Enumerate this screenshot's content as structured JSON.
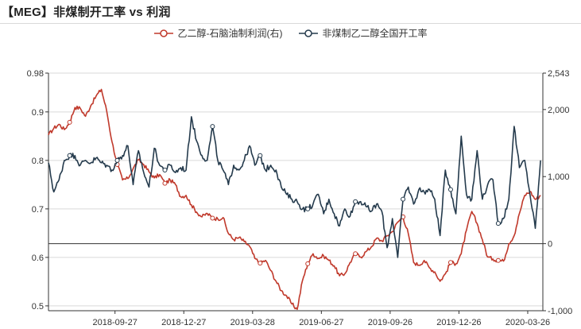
{
  "title": "【MEG】非煤制开工率 vs 利润",
  "colors": {
    "profit": "#c0392b",
    "rate": "#243a4c",
    "grid": "#d9d9d9",
    "axis": "#333333"
  },
  "chart_data": {
    "type": "line",
    "title": "【MEG】非煤制开工率 vs 利润",
    "x_tick_labels": [
      "2018-09-27",
      "2018-12-27",
      "2019-03-28",
      "2019-06-27",
      "2019-09-26",
      "2019-12-26",
      "2020-03-26"
    ],
    "x_range": [
      "2018-07-01",
      "2020-04-15"
    ],
    "y_left": {
      "ylim": [
        0.49,
        0.98
      ],
      "ticks": [
        0.5,
        0.6,
        0.7,
        0.8,
        0.9,
        0.98
      ],
      "tick_labels": [
        "0.5",
        "0.6",
        "0.7",
        "0.8",
        "0.9",
        "0.98"
      ]
    },
    "y_right": {
      "ylim": [
        -1000,
        2543
      ],
      "ticks": [
        -1000,
        0,
        1000,
        2000,
        2543
      ],
      "tick_labels": [
        "-1,000",
        "0",
        "1,000",
        "2,000",
        "2,543"
      ]
    },
    "grid": true,
    "legend_position": "top-center",
    "series": [
      {
        "name": "乙二醇-石脑油制利润(右)",
        "axis": "right",
        "color": "#c0392b",
        "marker": "hollow-circle",
        "points": [
          [
            "2018-07-01",
            1620
          ],
          [
            "2018-07-08",
            1720
          ],
          [
            "2018-07-15",
            1780
          ],
          [
            "2018-07-22",
            1700
          ],
          [
            "2018-07-29",
            1810
          ],
          [
            "2018-08-05",
            2030
          ],
          [
            "2018-08-12",
            2020
          ],
          [
            "2018-08-19",
            1900
          ],
          [
            "2018-08-26",
            2060
          ],
          [
            "2018-09-02",
            2200
          ],
          [
            "2018-09-09",
            2300
          ],
          [
            "2018-09-16",
            1980
          ],
          [
            "2018-09-23",
            1520
          ],
          [
            "2018-09-30",
            1180
          ],
          [
            "2018-10-07",
            950
          ],
          [
            "2018-10-14",
            970
          ],
          [
            "2018-10-21",
            1120
          ],
          [
            "2018-10-28",
            1250
          ],
          [
            "2018-11-04",
            1180
          ],
          [
            "2018-11-11",
            1070
          ],
          [
            "2018-11-18",
            980
          ],
          [
            "2018-11-25",
            1030
          ],
          [
            "2018-12-02",
            900
          ],
          [
            "2018-12-09",
            950
          ],
          [
            "2018-12-16",
            880
          ],
          [
            "2018-12-23",
            700
          ],
          [
            "2018-12-30",
            720
          ],
          [
            "2019-01-06",
            580
          ],
          [
            "2019-01-13",
            470
          ],
          [
            "2019-01-20",
            400
          ],
          [
            "2019-01-27",
            450
          ],
          [
            "2019-02-03",
            380
          ],
          [
            "2019-02-10",
            370
          ],
          [
            "2019-02-17",
            390
          ],
          [
            "2019-02-24",
            150
          ],
          [
            "2019-03-03",
            60
          ],
          [
            "2019-03-10",
            90
          ],
          [
            "2019-03-17",
            30
          ],
          [
            "2019-03-24",
            -40
          ],
          [
            "2019-03-31",
            -220
          ],
          [
            "2019-04-07",
            -290
          ],
          [
            "2019-04-14",
            -250
          ],
          [
            "2019-04-21",
            -400
          ],
          [
            "2019-04-28",
            -560
          ],
          [
            "2019-05-05",
            -700
          ],
          [
            "2019-05-12",
            -780
          ],
          [
            "2019-05-19",
            -900
          ],
          [
            "2019-05-26",
            -980
          ],
          [
            "2019-06-02",
            -550
          ],
          [
            "2019-06-09",
            -300
          ],
          [
            "2019-06-16",
            -150
          ],
          [
            "2019-06-23",
            -220
          ],
          [
            "2019-06-30",
            -180
          ],
          [
            "2019-07-07",
            -250
          ],
          [
            "2019-07-14",
            -330
          ],
          [
            "2019-07-21",
            -480
          ],
          [
            "2019-07-28",
            -450
          ],
          [
            "2019-08-04",
            -280
          ],
          [
            "2019-08-11",
            -150
          ],
          [
            "2019-08-18",
            -200
          ],
          [
            "2019-08-25",
            -120
          ],
          [
            "2019-09-01",
            -50
          ],
          [
            "2019-09-08",
            80
          ],
          [
            "2019-09-15",
            40
          ],
          [
            "2019-09-22",
            120
          ],
          [
            "2019-09-29",
            180
          ],
          [
            "2019-10-06",
            320
          ],
          [
            "2019-10-13",
            400
          ],
          [
            "2019-10-20",
            150
          ],
          [
            "2019-10-27",
            -280
          ],
          [
            "2019-11-03",
            -320
          ],
          [
            "2019-11-10",
            -250
          ],
          [
            "2019-11-17",
            -360
          ],
          [
            "2019-11-24",
            -420
          ],
          [
            "2019-12-01",
            -560
          ],
          [
            "2019-12-08",
            -450
          ],
          [
            "2019-12-15",
            -280
          ],
          [
            "2019-12-22",
            -300
          ],
          [
            "2019-12-29",
            -150
          ],
          [
            "2020-01-05",
            200
          ],
          [
            "2020-01-12",
            480
          ],
          [
            "2020-01-19",
            300
          ],
          [
            "2020-01-26",
            60
          ],
          [
            "2020-02-02",
            -200
          ],
          [
            "2020-02-09",
            -230
          ],
          [
            "2020-02-16",
            -250
          ],
          [
            "2020-02-23",
            -260
          ],
          [
            "2020-03-01",
            0
          ],
          [
            "2020-03-08",
            120
          ],
          [
            "2020-03-15",
            450
          ],
          [
            "2020-03-22",
            720
          ],
          [
            "2020-03-29",
            780
          ],
          [
            "2020-04-05",
            660
          ],
          [
            "2020-04-12",
            720
          ]
        ]
      },
      {
        "name": "非煤制乙二醇全国开工率",
        "axis": "left",
        "color": "#243a4c",
        "marker": "hollow-circle",
        "points": [
          [
            "2018-07-01",
            0.795
          ],
          [
            "2018-07-08",
            0.735
          ],
          [
            "2018-07-15",
            0.76
          ],
          [
            "2018-07-22",
            0.8
          ],
          [
            "2018-07-29",
            0.81
          ],
          [
            "2018-08-05",
            0.81
          ],
          [
            "2018-08-12",
            0.79
          ],
          [
            "2018-08-19",
            0.8
          ],
          [
            "2018-08-26",
            0.795
          ],
          [
            "2018-09-02",
            0.805
          ],
          [
            "2018-09-09",
            0.795
          ],
          [
            "2018-09-16",
            0.79
          ],
          [
            "2018-09-23",
            0.78
          ],
          [
            "2018-09-30",
            0.8
          ],
          [
            "2018-10-07",
            0.81
          ],
          [
            "2018-10-14",
            0.83
          ],
          [
            "2018-10-21",
            0.75
          ],
          [
            "2018-10-28",
            0.82
          ],
          [
            "2018-11-04",
            0.775
          ],
          [
            "2018-11-11",
            0.745
          ],
          [
            "2018-11-18",
            0.825
          ],
          [
            "2018-11-25",
            0.79
          ],
          [
            "2018-12-02",
            0.78
          ],
          [
            "2018-12-09",
            0.79
          ],
          [
            "2018-12-16",
            0.775
          ],
          [
            "2018-12-23",
            0.785
          ],
          [
            "2018-12-30",
            0.78
          ],
          [
            "2019-01-06",
            0.89
          ],
          [
            "2019-01-13",
            0.84
          ],
          [
            "2019-01-20",
            0.81
          ],
          [
            "2019-01-27",
            0.8
          ],
          [
            "2019-02-03",
            0.87
          ],
          [
            "2019-02-10",
            0.8
          ],
          [
            "2019-02-17",
            0.78
          ],
          [
            "2019-02-24",
            0.75
          ],
          [
            "2019-03-03",
            0.79
          ],
          [
            "2019-03-10",
            0.78
          ],
          [
            "2019-03-17",
            0.8
          ],
          [
            "2019-03-24",
            0.83
          ],
          [
            "2019-03-31",
            0.79
          ],
          [
            "2019-04-07",
            0.81
          ],
          [
            "2019-04-14",
            0.78
          ],
          [
            "2019-04-21",
            0.79
          ],
          [
            "2019-04-28",
            0.78
          ],
          [
            "2019-05-05",
            0.745
          ],
          [
            "2019-05-12",
            0.73
          ],
          [
            "2019-05-19",
            0.72
          ],
          [
            "2019-05-26",
            0.715
          ],
          [
            "2019-06-02",
            0.7
          ],
          [
            "2019-06-09",
            0.7
          ],
          [
            "2019-06-16",
            0.71
          ],
          [
            "2019-06-23",
            0.73
          ],
          [
            "2019-06-30",
            0.69
          ],
          [
            "2019-07-07",
            0.72
          ],
          [
            "2019-07-14",
            0.69
          ],
          [
            "2019-07-21",
            0.665
          ],
          [
            "2019-07-28",
            0.7
          ],
          [
            "2019-08-04",
            0.685
          ],
          [
            "2019-08-11",
            0.715
          ],
          [
            "2019-08-18",
            0.715
          ],
          [
            "2019-08-25",
            0.705
          ],
          [
            "2019-09-01",
            0.695
          ],
          [
            "2019-09-08",
            0.71
          ],
          [
            "2019-09-15",
            0.695
          ],
          [
            "2019-09-22",
            0.62
          ],
          [
            "2019-09-29",
            0.68
          ],
          [
            "2019-10-06",
            0.6
          ],
          [
            "2019-10-13",
            0.72
          ],
          [
            "2019-10-20",
            0.745
          ],
          [
            "2019-10-27",
            0.71
          ],
          [
            "2019-11-03",
            0.74
          ],
          [
            "2019-11-10",
            0.735
          ],
          [
            "2019-11-17",
            0.74
          ],
          [
            "2019-11-24",
            0.72
          ],
          [
            "2019-12-01",
            0.645
          ],
          [
            "2019-12-08",
            0.78
          ],
          [
            "2019-12-15",
            0.74
          ],
          [
            "2019-12-22",
            0.69
          ],
          [
            "2019-12-29",
            0.85
          ],
          [
            "2020-01-05",
            0.73
          ],
          [
            "2020-01-12",
            0.72
          ],
          [
            "2020-01-19",
            0.82
          ],
          [
            "2020-01-26",
            0.72
          ],
          [
            "2020-02-02",
            0.75
          ],
          [
            "2020-02-09",
            0.76
          ],
          [
            "2020-02-16",
            0.67
          ],
          [
            "2020-02-23",
            0.68
          ],
          [
            "2020-03-01",
            0.72
          ],
          [
            "2020-03-08",
            0.87
          ],
          [
            "2020-03-15",
            0.785
          ],
          [
            "2020-03-22",
            0.8
          ],
          [
            "2020-03-29",
            0.73
          ],
          [
            "2020-04-05",
            0.66
          ],
          [
            "2020-04-12",
            0.8
          ]
        ]
      }
    ]
  }
}
